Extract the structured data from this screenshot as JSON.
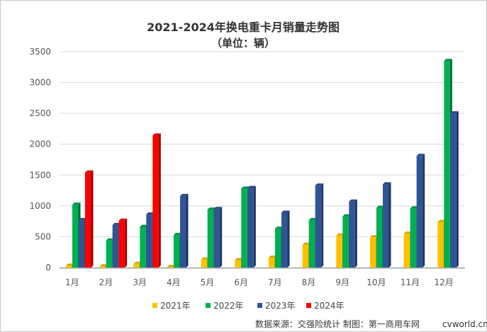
{
  "chart_data": {
    "type": "bar",
    "title": "2021-2024年换电重卡月销量走势图",
    "subtitle": "（单位：辆）",
    "categories": [
      "1月",
      "2月",
      "3月",
      "4月",
      "5月",
      "6月",
      "7月",
      "8月",
      "9月",
      "10月",
      "11月",
      "12月"
    ],
    "series": [
      {
        "name": "2021年",
        "color": "#FFC000",
        "values": [
          30,
          20,
          60,
          10,
          130,
          120,
          160,
          370,
          520,
          490,
          550,
          740
        ]
      },
      {
        "name": "2022年",
        "color": "#00B050",
        "values": [
          1020,
          440,
          660,
          530,
          940,
          1280,
          630,
          770,
          830,
          970,
          960,
          3350
        ]
      },
      {
        "name": "2023年",
        "color": "#2F5597",
        "values": [
          770,
          690,
          860,
          1160,
          950,
          1290,
          890,
          1330,
          1070,
          1350,
          1810,
          2500
        ]
      },
      {
        "name": "2024年",
        "color": "#FF0000",
        "values": [
          1540,
          760,
          2140,
          null,
          null,
          null,
          null,
          null,
          null,
          null,
          null,
          null
        ]
      }
    ],
    "yticks": [
      0,
      500,
      1000,
      1500,
      2000,
      2500,
      3000,
      3500
    ],
    "ylim": [
      0,
      3500
    ],
    "grid": true,
    "legend": "bottom"
  },
  "footer": {
    "source": "数据来源：交强险统计  制图：第一商用车网",
    "brand": "cvworld.cn"
  }
}
